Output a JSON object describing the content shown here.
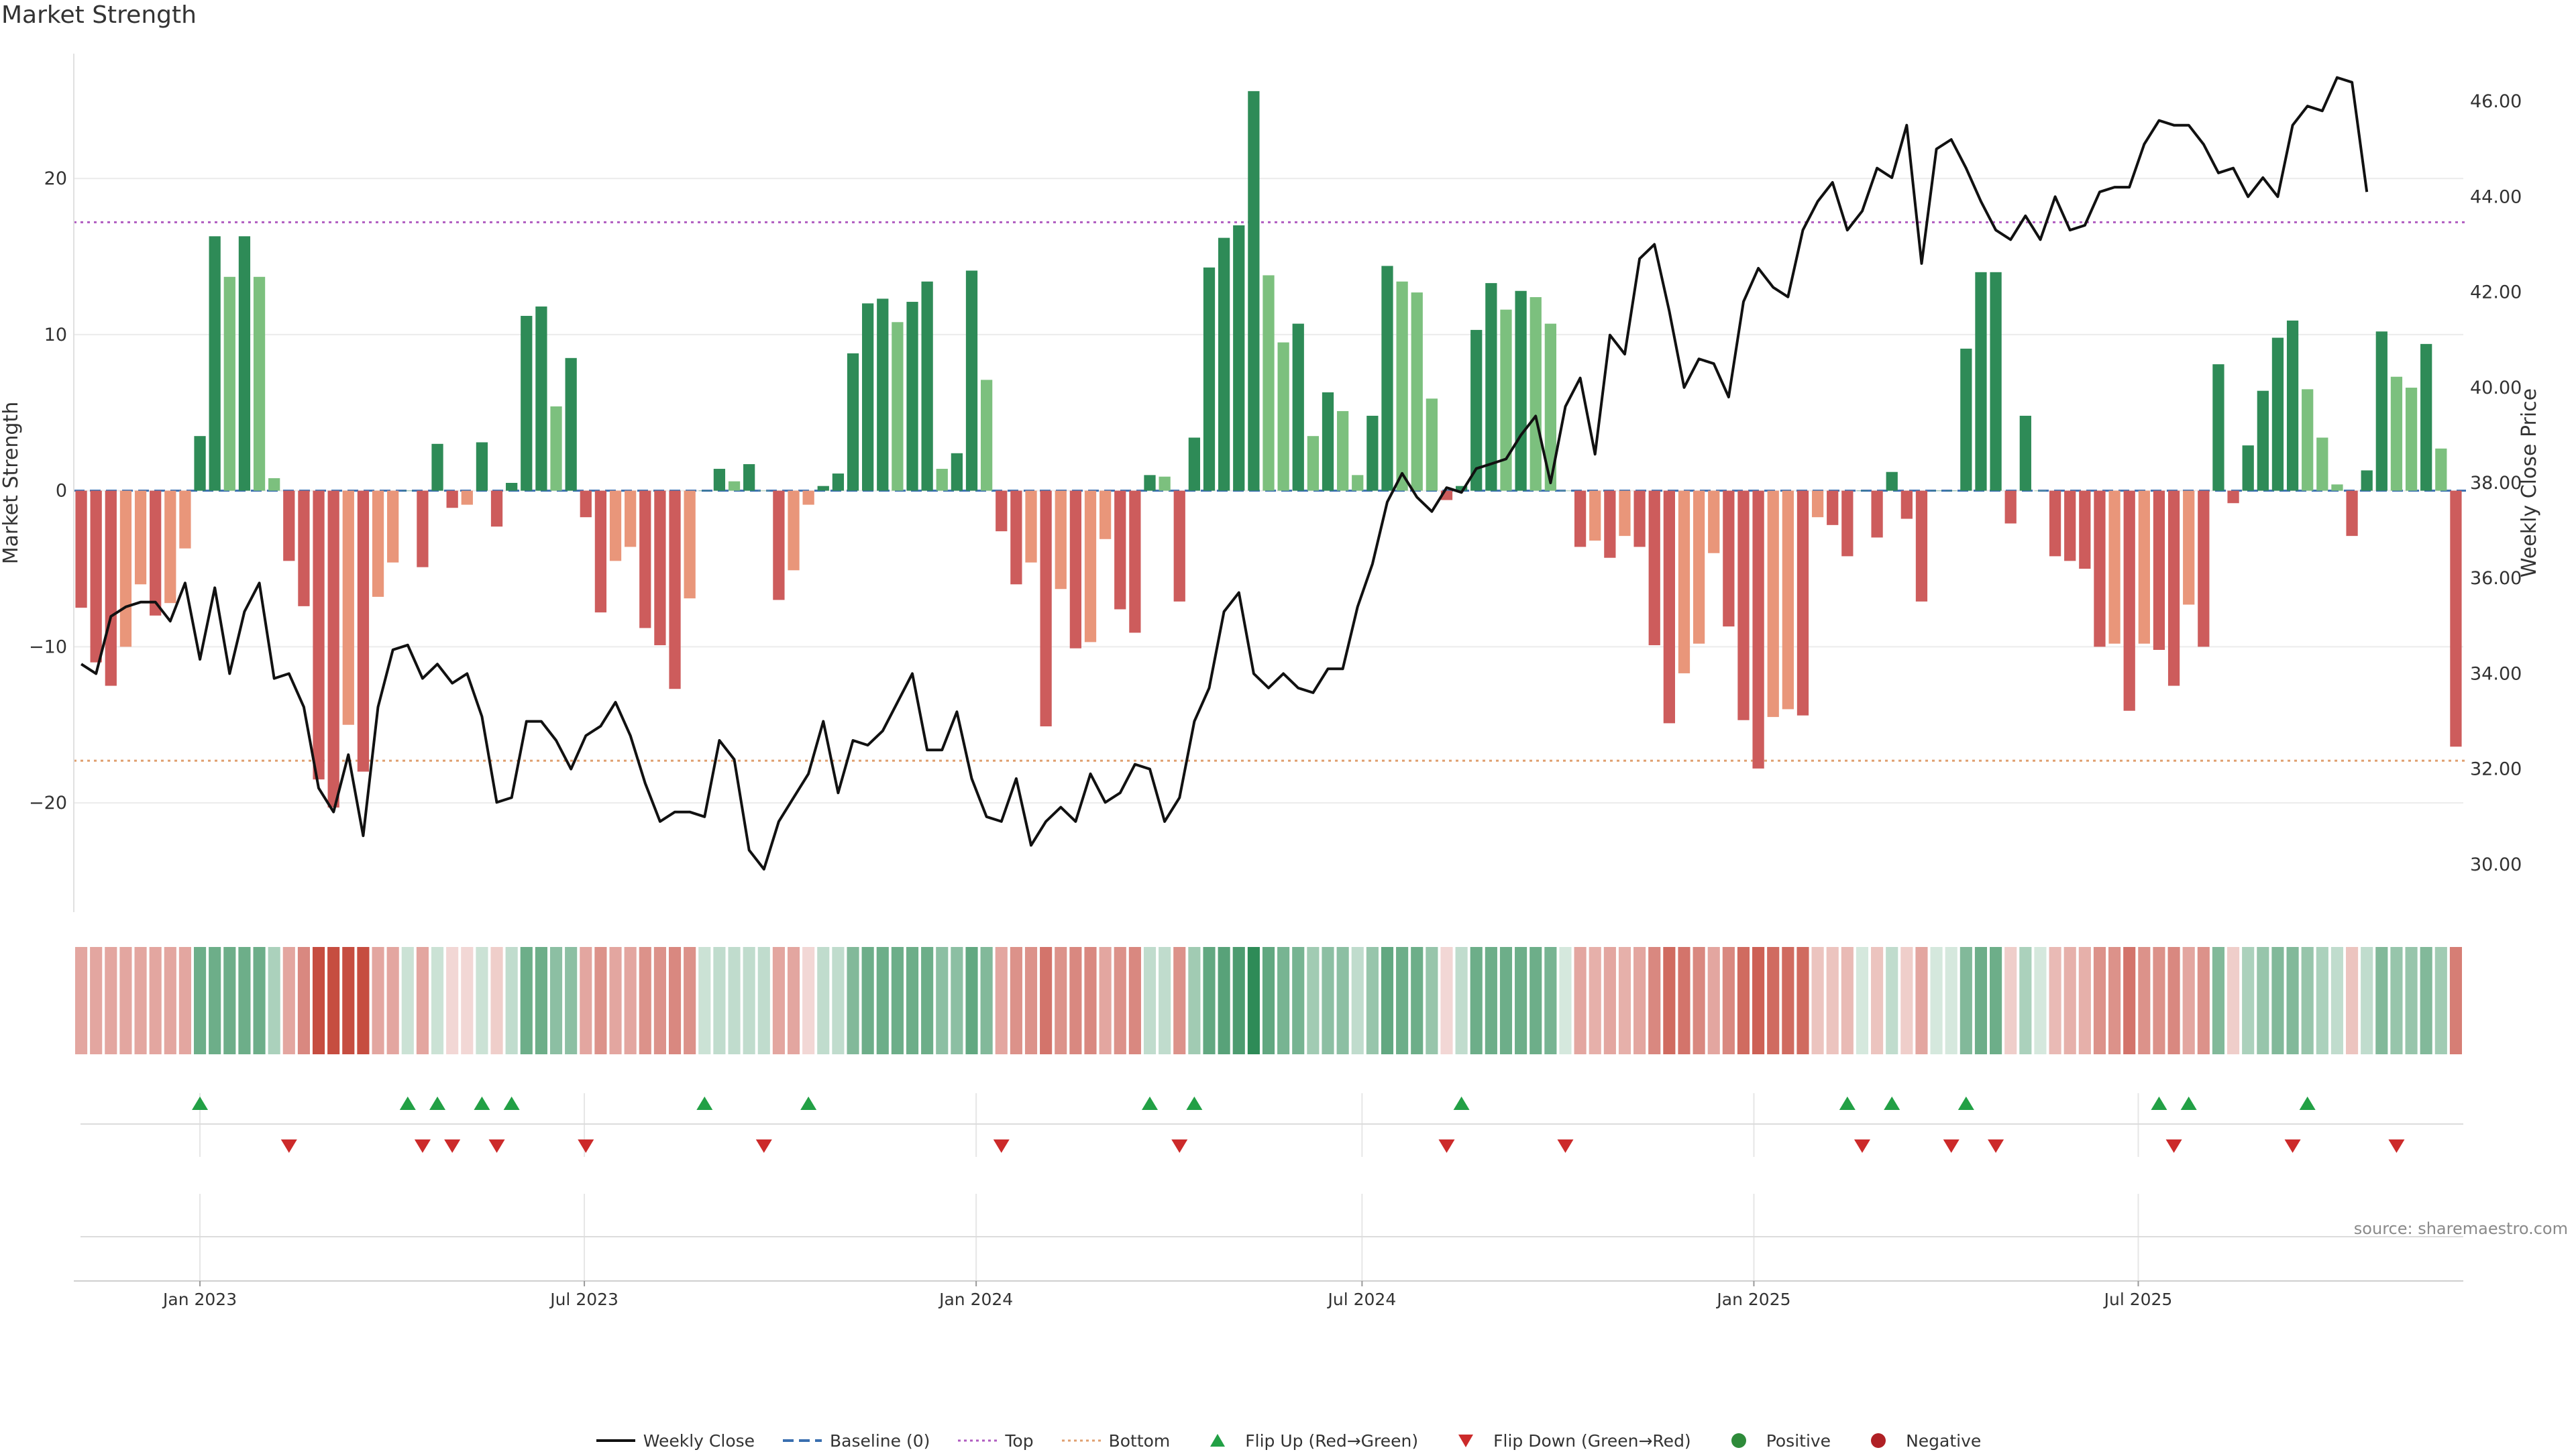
{
  "title": "Market Strength",
  "source": "source: sharemaestro.com",
  "chart_data": {
    "type": "bar+line",
    "title": "Market Strength",
    "ylabel_left": "Market Strength",
    "ylabel_right": "Weekly Close Price",
    "ylim_left": [
      -27,
      28
    ],
    "ylim_right": [
      29,
      47
    ],
    "left_ticks": [
      "20",
      "10",
      "0",
      "−10",
      "−20"
    ],
    "left_tick_values": [
      20,
      10,
      0,
      -10,
      -20
    ],
    "right_ticks": [
      "46.00",
      "44.00",
      "42.00",
      "40.00",
      "38.00",
      "36.00",
      "34.00",
      "32.00",
      "30.00"
    ],
    "right_tick_values": [
      46,
      44,
      42,
      40,
      38,
      36,
      34,
      32,
      30
    ],
    "x_ticks": [
      "Jan 2023",
      "Jul 2023",
      "Jan 2024",
      "Jul 2024",
      "Jan 2025",
      "Jul 2025"
    ],
    "x_tick_weeks": [
      8.5,
      34.4,
      60.8,
      86.8,
      113.2,
      139.1
    ],
    "top_line": 17.2,
    "bottom_line": -17.3,
    "baseline": 0,
    "strength": [
      -7.5,
      -11,
      -12.5,
      -10,
      -6,
      -8,
      -7.2,
      -3.7,
      3.5,
      16.3,
      13.7,
      16.3,
      13.7,
      0.8,
      -4.5,
      -7.4,
      -18.5,
      -20.3,
      -15,
      -18,
      -6.8,
      -4.6,
      0,
      -4.9,
      3,
      -1.1,
      -0.9,
      3.1,
      -2.3,
      0.5,
      11.2,
      11.8,
      5.4,
      8.5,
      -1.7,
      -7.8,
      -4.5,
      -3.6,
      -8.8,
      -9.9,
      -12.7,
      -6.9,
      0,
      1.4,
      0.6,
      1.7,
      0,
      -7,
      -5.1,
      -0.9,
      0.3,
      1.1,
      8.8,
      12,
      12.3,
      10.8,
      12.1,
      13.4,
      1.4,
      2.4,
      14.1,
      7.1,
      -2.6,
      -6,
      -4.6,
      -15.1,
      -6.3,
      -10.1,
      -9.7,
      -3.1,
      -7.6,
      -9.1,
      1,
      0.9,
      -7.1,
      3.4,
      14.3,
      16.2,
      17,
      25.6,
      13.8,
      9.5,
      10.7,
      3.5,
      6.3,
      5.1,
      1,
      4.8,
      14.4,
      13.4,
      12.7,
      5.9,
      -0.6,
      0.3,
      10.3,
      13.3,
      11.6,
      12.8,
      12.4,
      10.7,
      0,
      -3.6,
      -3.2,
      -4.3,
      -2.9,
      -3.6,
      -9.9,
      -14.9,
      -11.7,
      -9.8,
      -4,
      -8.7,
      -14.7,
      -17.8,
      -14.5,
      -14,
      -14.4,
      -1.7,
      -2.2,
      -4.2,
      0,
      -3,
      1.2,
      -1.8,
      -7.1,
      0,
      0,
      9.1,
      14,
      14,
      -2.1,
      4.8,
      0,
      -4.2,
      -4.5,
      -5,
      -10,
      -9.8,
      -14.1,
      -9.8,
      -10.2,
      -12.5,
      -7.3,
      -10,
      8.1,
      -0.8,
      2.9,
      6.4,
      9.8,
      10.9,
      6.5,
      3.4,
      0.4,
      -2.9,
      1.3,
      10.2,
      7.3,
      6.6,
      9.4,
      2.7,
      -16.4
    ],
    "close": [
      34.2,
      34.0,
      35.2,
      35.4,
      35.5,
      35.5,
      35.1,
      35.9,
      34.3,
      35.8,
      34.0,
      35.3,
      35.9,
      33.9,
      34.0,
      33.3,
      31.6,
      31.1,
      32.3,
      30.6,
      33.3,
      34.5,
      34.6,
      33.9,
      34.2,
      33.8,
      34.0,
      33.1,
      31.3,
      31.4,
      33.0,
      33.0,
      32.6,
      32.0,
      32.7,
      32.9,
      33.4,
      32.7,
      31.7,
      30.9,
      31.1,
      31.1,
      31.0,
      32.6,
      32.2,
      30.3,
      29.9,
      30.9,
      31.4,
      31.9,
      33.0,
      31.5,
      32.6,
      32.5,
      32.8,
      33.4,
      34.0,
      32.4,
      32.4,
      33.2,
      31.8,
      31.0,
      30.9,
      31.8,
      30.4,
      30.9,
      31.2,
      30.9,
      31.9,
      31.3,
      31.5,
      32.1,
      32.0,
      30.9,
      31.4,
      33.0,
      33.7,
      35.3,
      35.7,
      34.0,
      33.7,
      34.0,
      33.7,
      33.6,
      34.1,
      34.1,
      35.4,
      36.3,
      37.6,
      38.2,
      37.7,
      37.4,
      37.9,
      37.8,
      38.3,
      38.4,
      38.5,
      39.0,
      39.4,
      38.0,
      39.6,
      40.2,
      38.6,
      41.1,
      40.7,
      42.7,
      43.0,
      41.6,
      40.0,
      40.6,
      40.5,
      39.8,
      41.8,
      42.5,
      42.1,
      41.9,
      43.3,
      43.9,
      44.3,
      43.3,
      43.7,
      44.6,
      44.4,
      45.5,
      42.6,
      45.0,
      45.2,
      44.6,
      43.9,
      43.3,
      43.1,
      43.6,
      43.1,
      44.0,
      43.3,
      43.4,
      44.1,
      44.2,
      44.2,
      45.1,
      45.6,
      45.5,
      45.5,
      45.1,
      44.5,
      44.6,
      44.0,
      44.4,
      44.0,
      45.5,
      45.9,
      45.8,
      46.5,
      46.4,
      44.1
    ],
    "heat": [
      0.45,
      0.45,
      0.45,
      0.45,
      0.45,
      0.45,
      0.45,
      0.45,
      0.7,
      0.7,
      0.7,
      0.7,
      0.7,
      0.4,
      0.45,
      0.6,
      0.9,
      0.9,
      0.9,
      0.9,
      0.45,
      0.45,
      0.25,
      0.45,
      0.25,
      0.2,
      0.2,
      0.25,
      0.25,
      0.3,
      0.7,
      0.7,
      0.55,
      0.55,
      0.45,
      0.55,
      0.45,
      0.45,
      0.55,
      0.55,
      0.6,
      0.55,
      0.25,
      0.3,
      0.3,
      0.3,
      0.3,
      0.45,
      0.45,
      0.2,
      0.3,
      0.3,
      0.6,
      0.7,
      0.7,
      0.7,
      0.7,
      0.7,
      0.55,
      0.55,
      0.75,
      0.6,
      0.45,
      0.55,
      0.55,
      0.7,
      0.55,
      0.6,
      0.6,
      0.45,
      0.55,
      0.6,
      0.3,
      0.3,
      0.55,
      0.45,
      0.75,
      0.8,
      0.85,
      1,
      0.75,
      0.65,
      0.65,
      0.45,
      0.55,
      0.55,
      0.3,
      0.5,
      0.75,
      0.7,
      0.7,
      0.5,
      0.2,
      0.3,
      0.7,
      0.7,
      0.7,
      0.7,
      0.7,
      0.65,
      0.2,
      0.45,
      0.4,
      0.45,
      0.4,
      0.45,
      0.6,
      0.75,
      0.7,
      0.6,
      0.45,
      0.6,
      0.75,
      0.8,
      0.75,
      0.75,
      0.75,
      0.3,
      0.3,
      0.35,
      0.2,
      0.3,
      0.3,
      0.25,
      0.45,
      0.2,
      0.2,
      0.6,
      0.7,
      0.7,
      0.25,
      0.4,
      0.2,
      0.35,
      0.4,
      0.4,
      0.55,
      0.55,
      0.7,
      0.55,
      0.55,
      0.6,
      0.45,
      0.55,
      0.6,
      0.25,
      0.4,
      0.5,
      0.6,
      0.6,
      0.5,
      0.4,
      0.3,
      0.3,
      0.3,
      0.6,
      0.5,
      0.5,
      0.6,
      0.45,
      0.65
    ],
    "flip_up_weeks": [
      8,
      22,
      24,
      27,
      29,
      42,
      49,
      72,
      75,
      93,
      119,
      122,
      127,
      140,
      142,
      150
    ],
    "flip_down_weeks": [
      14,
      23,
      25,
      28,
      34,
      46,
      62,
      74,
      92,
      100,
      120,
      126,
      129,
      141,
      149,
      156
    ],
    "legend": [
      {
        "label": "Weekly Close",
        "kind": "line",
        "color": "#111111"
      },
      {
        "label": "Baseline (0)",
        "kind": "dash",
        "color": "#3a6fb0"
      },
      {
        "label": "Top",
        "kind": "dot",
        "color": "#b05cc0"
      },
      {
        "label": "Bottom",
        "kind": "dot",
        "color": "#e0a070"
      },
      {
        "label": "Flip Up (Red→Green)",
        "kind": "tri-up",
        "color": "#22a045"
      },
      {
        "label": "Flip Down (Green→Red)",
        "kind": "tri-down",
        "color": "#cc2a2a"
      },
      {
        "label": "Positive",
        "kind": "circle",
        "color": "#2e8b3a"
      },
      {
        "label": "Negative",
        "kind": "circle",
        "color": "#b02025"
      }
    ],
    "colors": {
      "strong_green": "#2e8b57",
      "light_green": "#7cc07e",
      "strong_red": "#cd5c5c",
      "light_red": "#e9967a",
      "heat_green": "#2e8b57",
      "heat_red": "#c0392b"
    }
  }
}
